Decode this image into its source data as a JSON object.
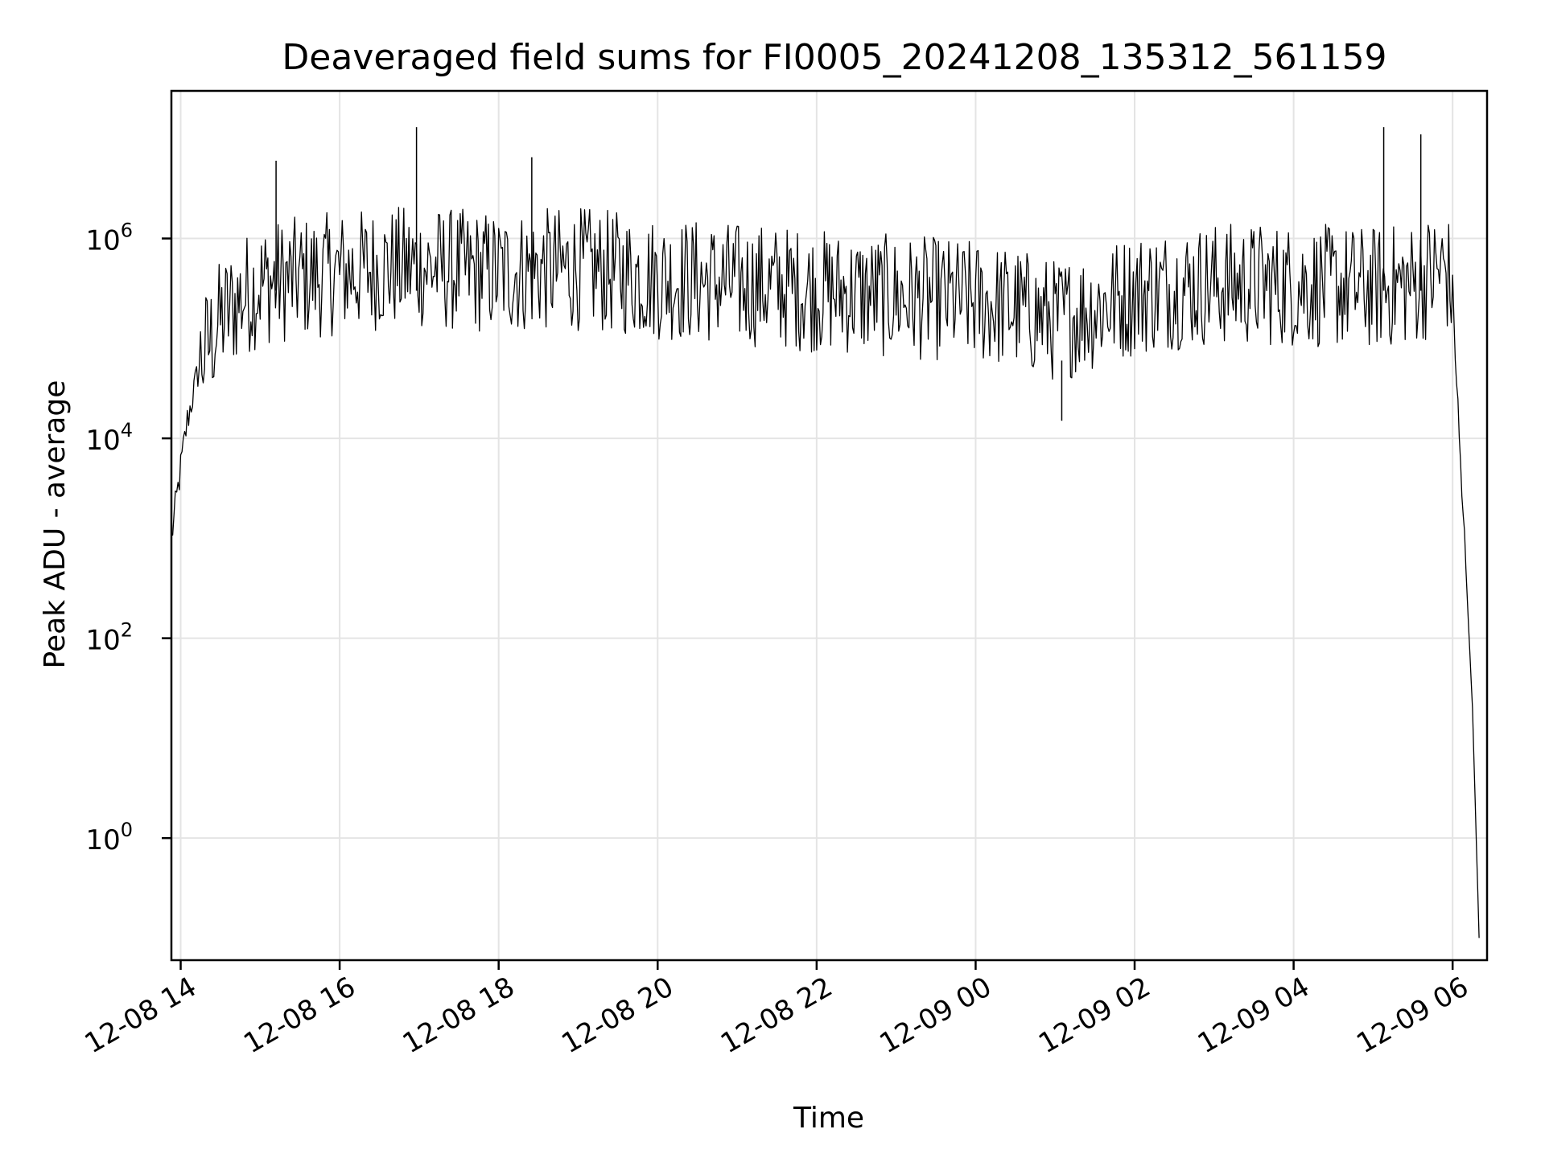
{
  "chart_data": {
    "type": "line",
    "title": "Deaveraged field sums for FI0005_20241208_135312_561159",
    "xlabel": "Time",
    "ylabel": "Peak ADU - average",
    "yscale": "log",
    "ylim": [
      0.06,
      30000000
    ],
    "xlim": [
      "2024-12-08 13:53",
      "2024-12-09 06:26"
    ],
    "x_ticks": [
      "12-08 14",
      "12-08 16",
      "12-08 18",
      "12-08 20",
      "12-08 22",
      "12-09 00",
      "12-09 02",
      "12-09 04",
      "12-09 06"
    ],
    "y_ticks": [
      {
        "base": "10",
        "exp": "0"
      },
      {
        "base": "10",
        "exp": "2"
      },
      {
        "base": "10",
        "exp": "4"
      },
      {
        "base": "10",
        "exp": "6"
      }
    ],
    "grid": true,
    "line_color": "#000000",
    "series": [
      {
        "name": "",
        "x": [
          "2024-12-08 13:53",
          "2024-12-08 14:00",
          "2024-12-08 14:05",
          "2024-12-08 14:15",
          "2024-12-08 14:30",
          "2024-12-08 14:45",
          "2024-12-08 15:00",
          "2024-12-08 15:30",
          "2024-12-08 16:00",
          "2024-12-08 16:30",
          "2024-12-08 17:00",
          "2024-12-08 17:30",
          "2024-12-08 18:00",
          "2024-12-08 18:30",
          "2024-12-08 19:00",
          "2024-12-08 19:30",
          "2024-12-08 20:00",
          "2024-12-08 20:30",
          "2024-12-08 21:00",
          "2024-12-08 21:30",
          "2024-12-08 22:00",
          "2024-12-08 22:30",
          "2024-12-08 23:00",
          "2024-12-08 23:30",
          "2024-12-09 00:00",
          "2024-12-09 00:30",
          "2024-12-09 01:00",
          "2024-12-09 01:30",
          "2024-12-09 02:00",
          "2024-12-09 02:30",
          "2024-12-09 03:00",
          "2024-12-09 03:30",
          "2024-12-09 04:00",
          "2024-12-09 04:30",
          "2024-12-09 05:00",
          "2024-12-09 05:30",
          "2024-12-09 05:55",
          "2024-12-09 06:00",
          "2024-12-09 06:05",
          "2024-12-09 06:10",
          "2024-12-09 06:15",
          "2024-12-09 06:20"
        ],
        "values": [
          1000,
          5000,
          15000,
          60000,
          150000,
          250000,
          350000,
          400000,
          450000,
          500000,
          520000,
          480000,
          450000,
          480000,
          500000,
          450000,
          400000,
          380000,
          350000,
          330000,
          300000,
          280000,
          260000,
          250000,
          230000,
          200000,
          150000,
          200000,
          280000,
          320000,
          350000,
          350000,
          340000,
          330000,
          320000,
          350000,
          500000,
          300000,
          10000,
          500,
          20,
          0.1
        ],
        "peaks": [
          {
            "x": "2024-12-08 15:12",
            "y": 6000000
          },
          {
            "x": "2024-12-08 16:58",
            "y": 13000000
          },
          {
            "x": "2024-12-08 18:25",
            "y": 6500000
          },
          {
            "x": "2024-12-09 01:05",
            "y": 15000
          },
          {
            "x": "2024-12-09 05:08",
            "y": 13000000
          },
          {
            "x": "2024-12-09 05:36",
            "y": 11000000
          }
        ]
      }
    ]
  }
}
